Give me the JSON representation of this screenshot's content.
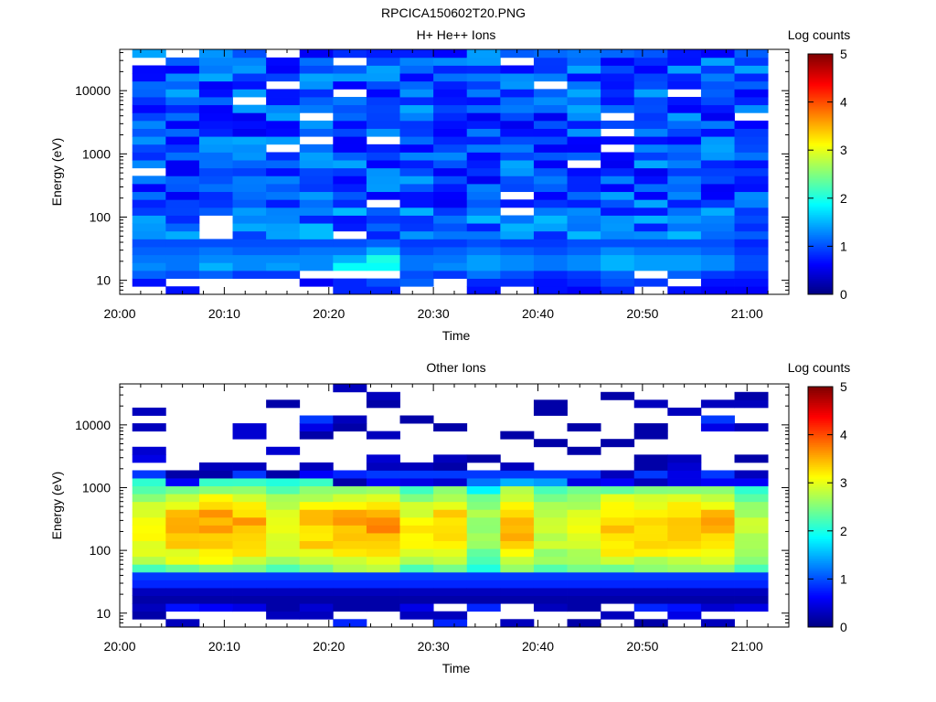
{
  "figure_title": "RPCICA150602T20.PNG",
  "colormap": [
    "#00007f",
    "#0000ff",
    "#007fff",
    "#00ffff",
    "#7fff7f",
    "#ffff00",
    "#ff7f00",
    "#ff0000",
    "#7f0000"
  ],
  "chart_data": [
    {
      "type": "heatmap",
      "title": "H+ He++ Ions",
      "xlabel": "Time",
      "ylabel": "Energy (eV)",
      "x_ticks": [
        "20:00",
        "20:10",
        "20:20",
        "20:30",
        "20:40",
        "20:50",
        "21:00"
      ],
      "xlim_minutes": [
        0,
        64
      ],
      "y_ticks": [
        "10",
        "100",
        "1000",
        "10000"
      ],
      "ylim": [
        6,
        45000
      ],
      "yscale": "log",
      "colorbar_label": "Log counts",
      "colorbar_ticks": [
        "0",
        "1",
        "2",
        "3",
        "4",
        "5"
      ],
      "zlim": [
        0,
        5
      ],
      "time_bins": 19,
      "bin_start_minutes": 1.2,
      "bin_width_minutes": 3.2,
      "energy_bins": 31,
      "energy_bin_edges_log10": [
        0.78,
        4.65
      ],
      "columns": [
        {
          "low": [
            -1,
            0.7,
            1.1,
            1.3,
            1.2,
            1.1,
            1.0
          ],
          "noise": 0.45
        },
        {
          "low": [
            0.7,
            -1,
            1.0,
            1.2,
            1.2,
            1.1,
            1.0
          ],
          "noise": 0.45
        },
        {
          "low": [
            -1,
            -1,
            1.1,
            1.5,
            1.3,
            1.2,
            1.0
          ],
          "noise": 0.45
        },
        {
          "low": [
            -1,
            -1,
            0.9,
            1.3,
            1.3,
            1.1,
            1.0
          ],
          "noise": 0.45
        },
        {
          "low": [
            -1,
            -1,
            0.9,
            1.4,
            1.3,
            1.1,
            1.0
          ],
          "noise": 0.45
        },
        {
          "low": [
            -1,
            0.6,
            -1,
            1.3,
            1.3,
            1.2,
            1.0
          ],
          "noise": 0.45
        },
        {
          "low": [
            0.8,
            0.8,
            -1,
            1.9,
            1.5,
            1.2,
            1.0
          ],
          "noise": 0.45
        },
        {
          "low": [
            0.8,
            1.0,
            -1,
            1.9,
            2.0,
            1.5,
            1.1
          ],
          "noise": 0.45
        },
        {
          "low": [
            -1,
            1.1,
            1.0,
            1.2,
            1.2,
            1.0,
            0.9
          ],
          "noise": 0.45
        },
        {
          "low": [
            -1,
            -1,
            0.9,
            1.3,
            1.2,
            1.1,
            0.9
          ],
          "noise": 0.45
        },
        {
          "low": [
            0.7,
            0.8,
            1.2,
            1.4,
            1.4,
            1.2,
            1.0
          ],
          "noise": 0.45
        },
        {
          "low": [
            -1,
            0.8,
            1.0,
            1.3,
            1.3,
            1.1,
            0.9
          ],
          "noise": 0.45
        },
        {
          "low": [
            0.7,
            0.7,
            0.8,
            1.2,
            1.2,
            1.0,
            0.9
          ],
          "noise": 0.45
        },
        {
          "low": [
            0.6,
            0.8,
            0.9,
            1.3,
            1.3,
            1.1,
            1.0
          ],
          "noise": 0.45
        },
        {
          "low": [
            0.8,
            1.0,
            1.1,
            1.5,
            1.5,
            1.3,
            1.0
          ],
          "noise": 0.45
        },
        {
          "low": [
            -1,
            0.9,
            -1,
            1.4,
            1.4,
            1.2,
            1.0
          ],
          "noise": 0.45
        },
        {
          "low": [
            0.7,
            -1,
            1.1,
            1.4,
            1.4,
            1.2,
            1.0
          ],
          "noise": 0.45
        },
        {
          "low": [
            0.6,
            0.7,
            0.9,
            1.3,
            1.3,
            1.1,
            1.0
          ],
          "noise": 0.45
        },
        {
          "low": [
            0.6,
            0.7,
            0.8,
            1.0,
            1.0,
            0.9,
            0.8
          ],
          "noise": 0.45
        }
      ],
      "upper_level": 1.0,
      "white_gaps_upper": true
    },
    {
      "type": "heatmap",
      "title": "Other Ions",
      "xlabel": "Time",
      "ylabel": "Energy (eV)",
      "x_ticks": [
        "20:00",
        "20:10",
        "20:20",
        "20:30",
        "20:40",
        "20:50",
        "21:00"
      ],
      "xlim_minutes": [
        0,
        64
      ],
      "y_ticks": [
        "10",
        "100",
        "1000",
        "10000"
      ],
      "ylim": [
        6,
        45000
      ],
      "yscale": "log",
      "colorbar_label": "Log counts",
      "colorbar_ticks": [
        "0",
        "1",
        "2",
        "3",
        "4",
        "5"
      ],
      "zlim": [
        0,
        5
      ],
      "time_bins": 19,
      "bin_start_minutes": 1.2,
      "bin_width_minutes": 3.2,
      "energy_bins": 31,
      "energy_bin_edges_log10": [
        0.78,
        4.65
      ],
      "band_profile": [
        0.2,
        0.3,
        0.8,
        0.9,
        2.3,
        2.6,
        2.8,
        3.0,
        3.0,
        3.1,
        3.1,
        3.0,
        2.8,
        2.6,
        2.3,
        1.9,
        0.9
      ],
      "column_peak": [
        3.1,
        3.3,
        3.5,
        3.4,
        3.0,
        3.3,
        3.4,
        3.5,
        3.0,
        3.3,
        2.6,
        3.4,
        2.9,
        3.0,
        3.3,
        3.3,
        3.4,
        3.4,
        2.8
      ],
      "sparse_upper": [
        [
          [
            25,
            0.3
          ],
          [
            27,
            0.3
          ],
          [
            22,
            0.4
          ],
          [
            21,
            0.5
          ]
        ],
        [
          [
            19,
            0.2
          ],
          [
            18,
            0.6
          ]
        ],
        [
          [
            20,
            0.3
          ],
          [
            19,
            0.2
          ]
        ],
        [
          [
            24,
            0.4
          ],
          [
            25,
            0.4
          ],
          [
            20,
            0.3
          ]
        ],
        [
          [
            28,
            0.2
          ],
          [
            22,
            0.4
          ],
          [
            19,
            0.2
          ]
        ],
        [
          [
            26,
            0.9
          ],
          [
            25,
            0.5
          ],
          [
            24,
            0.2
          ],
          [
            20,
            0.3
          ],
          [
            19,
            0.6
          ]
        ],
        [
          [
            30,
            0.3
          ],
          [
            26,
            0.3
          ],
          [
            25,
            0.2
          ],
          [
            19,
            0.8
          ],
          [
            18,
            0.2
          ]
        ],
        [
          [
            29,
            0.3
          ],
          [
            28,
            0.2
          ],
          [
            24,
            0.3
          ],
          [
            21,
            0.4
          ],
          [
            20,
            0.3
          ],
          [
            18,
            0.6
          ]
        ],
        [
          [
            26,
            0.2
          ],
          [
            20,
            0.3
          ],
          [
            18,
            0.5
          ]
        ],
        [
          [
            25,
            0.2
          ],
          [
            21,
            0.3
          ],
          [
            20,
            0.2
          ],
          [
            18,
            0.4
          ]
        ],
        [
          [
            21,
            0.2
          ],
          [
            18,
            1.2
          ]
        ],
        [
          [
            24,
            0.2
          ],
          [
            20,
            0.3
          ],
          [
            18,
            1.5
          ]
        ],
        [
          [
            28,
            0.2
          ],
          [
            27,
            0.2
          ],
          [
            23,
            0.2
          ],
          [
            18,
            1.4
          ]
        ],
        [
          [
            25,
            0.2
          ],
          [
            22,
            0.2
          ],
          [
            18,
            0.5
          ]
        ],
        [
          [
            29,
            0.2
          ],
          [
            23,
            0.2
          ],
          [
            19,
            0.3
          ],
          [
            18,
            0.6
          ]
        ],
        [
          [
            28,
            0.3
          ],
          [
            25,
            0.2
          ],
          [
            24,
            0.2
          ],
          [
            21,
            0.2
          ],
          [
            20,
            0.2
          ],
          [
            18,
            0.3
          ]
        ],
        [
          [
            27,
            0.3
          ],
          [
            21,
            0.3
          ],
          [
            20,
            0.4
          ],
          [
            19,
            0.5
          ],
          [
            18,
            0.5
          ]
        ],
        [
          [
            28,
            0.3
          ],
          [
            26,
            0.9
          ],
          [
            25,
            0.5
          ],
          [
            18,
            0.6
          ]
        ],
        [
          [
            29,
            0.2
          ],
          [
            28,
            0.3
          ],
          [
            25,
            0.3
          ],
          [
            21,
            0.2
          ],
          [
            19,
            0.3
          ],
          [
            18,
            0.6
          ]
        ]
      ],
      "low_bins": [
        [
          -1,
          0.2,
          0.3
        ],
        [
          0.3,
          -1,
          0.7
        ],
        [
          -1,
          -1,
          0.6
        ],
        [
          -1,
          -1,
          0.5
        ],
        [
          -1,
          0.3,
          0.2
        ],
        [
          -1,
          0.3,
          0.4
        ],
        [
          0.8,
          -1,
          0.2
        ],
        [
          -1,
          -1,
          0.2
        ],
        [
          -1,
          0.3,
          0.5
        ],
        [
          0.8,
          0.3,
          -1
        ],
        [
          -1,
          -1,
          0.8
        ],
        [
          0.3,
          -1,
          -1
        ],
        [
          -1,
          -1,
          0.3
        ],
        [
          0.2,
          -1,
          0.2
        ],
        [
          -1,
          0.3,
          -1
        ],
        [
          0.2,
          -1,
          0.8
        ],
        [
          -1,
          0.5,
          0.7
        ],
        [
          0.3,
          -1,
          0.4
        ],
        [
          -1,
          -1,
          0.5
        ]
      ]
    }
  ]
}
